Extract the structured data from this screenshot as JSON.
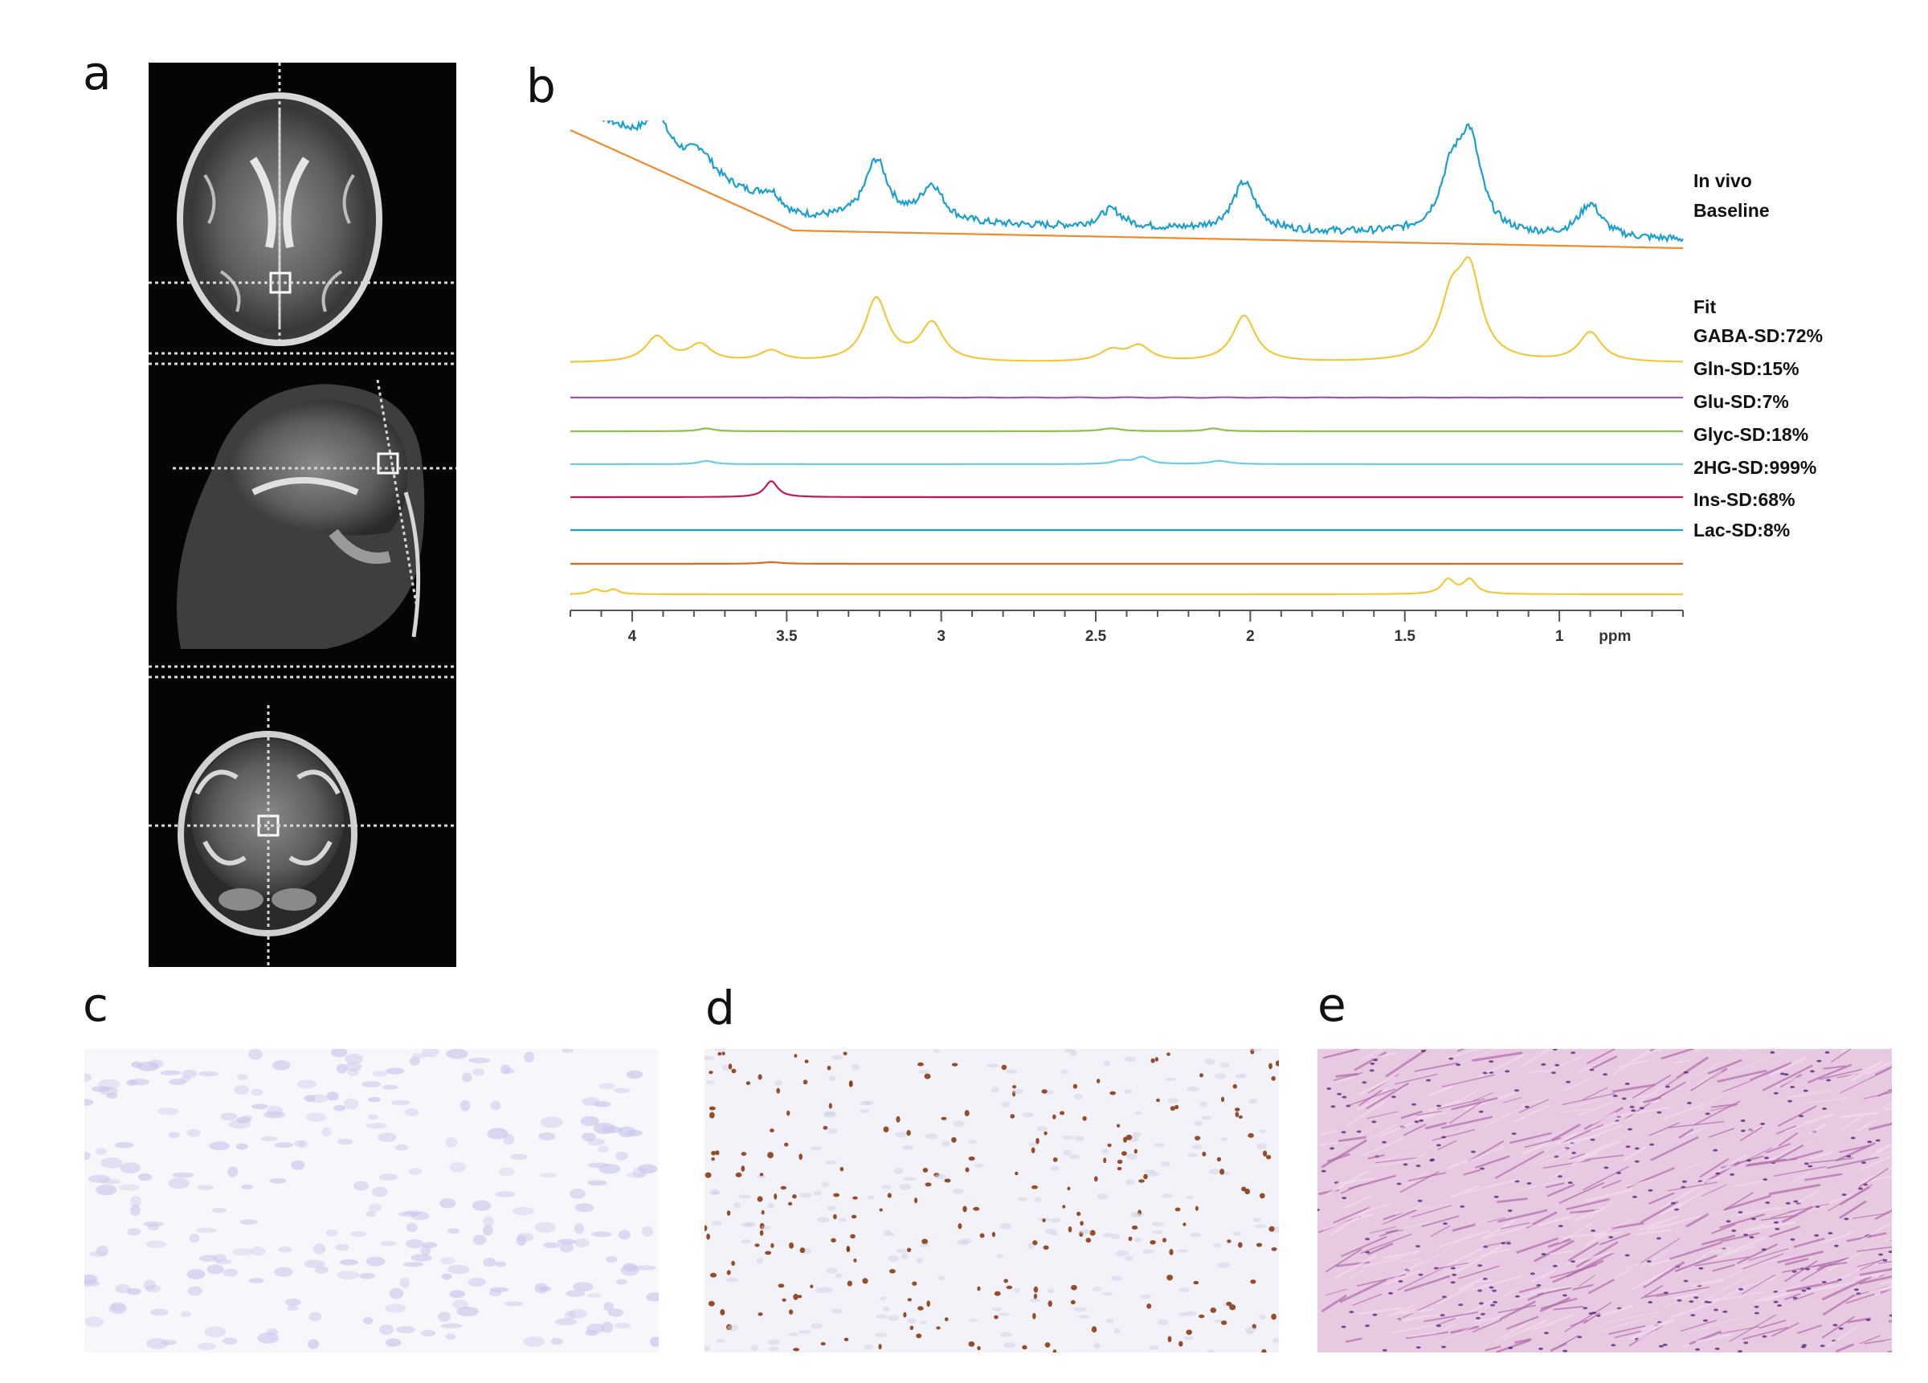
{
  "panels": {
    "a": "a",
    "b": "b",
    "c": "c",
    "d": "d",
    "e": "e"
  },
  "chart_data": {
    "type": "line",
    "xlabel": "ppm",
    "xlim": [
      4.2,
      0.6
    ],
    "x_ticks": [
      "4",
      "3.5",
      "3",
      "2.5",
      "2",
      "1.5",
      "1"
    ],
    "x_tick_values": [
      4,
      3.5,
      3,
      2.5,
      2,
      1.5,
      1
    ],
    "series": [
      {
        "name": "In vivo",
        "color": "#1a9fd0",
        "peaks": [
          [
            3.92,
            0.55
          ],
          [
            3.78,
            0.35
          ],
          [
            3.55,
            0.25
          ],
          [
            3.21,
            1.0
          ],
          [
            3.03,
            0.6
          ],
          [
            2.45,
            0.3
          ],
          [
            2.02,
            0.8
          ],
          [
            1.35,
            0.85
          ],
          [
            1.29,
            1.5
          ],
          [
            0.9,
            0.55
          ]
        ]
      },
      {
        "name": "Baseline",
        "color": "#f08a2a"
      },
      {
        "name": "Fit",
        "color": "#f2c83a",
        "peaks": [
          [
            3.92,
            0.3
          ],
          [
            3.78,
            0.2
          ],
          [
            3.55,
            0.13
          ],
          [
            3.21,
            0.75
          ],
          [
            3.03,
            0.45
          ],
          [
            2.45,
            0.13
          ],
          [
            2.36,
            0.18
          ],
          [
            2.02,
            0.55
          ],
          [
            1.35,
            0.65
          ],
          [
            1.29,
            1.0
          ],
          [
            0.9,
            0.35
          ]
        ]
      },
      {
        "name": "GABA-SD:72%",
        "color": "#9b55b5"
      },
      {
        "name": "Gln-SD:15%",
        "color": "#8cc04a"
      },
      {
        "name": "Glu-SD:7%",
        "color": "#68cde6"
      },
      {
        "name": "Glyc-SD:18%",
        "color": "#c2185b"
      },
      {
        "name": "2HG-SD:999%",
        "color": "#1a9fd0"
      },
      {
        "name": "Ins-SD:68%",
        "color": "#e06a1a"
      },
      {
        "name": "Lac-SD:8%",
        "color": "#f2c83a"
      }
    ]
  }
}
